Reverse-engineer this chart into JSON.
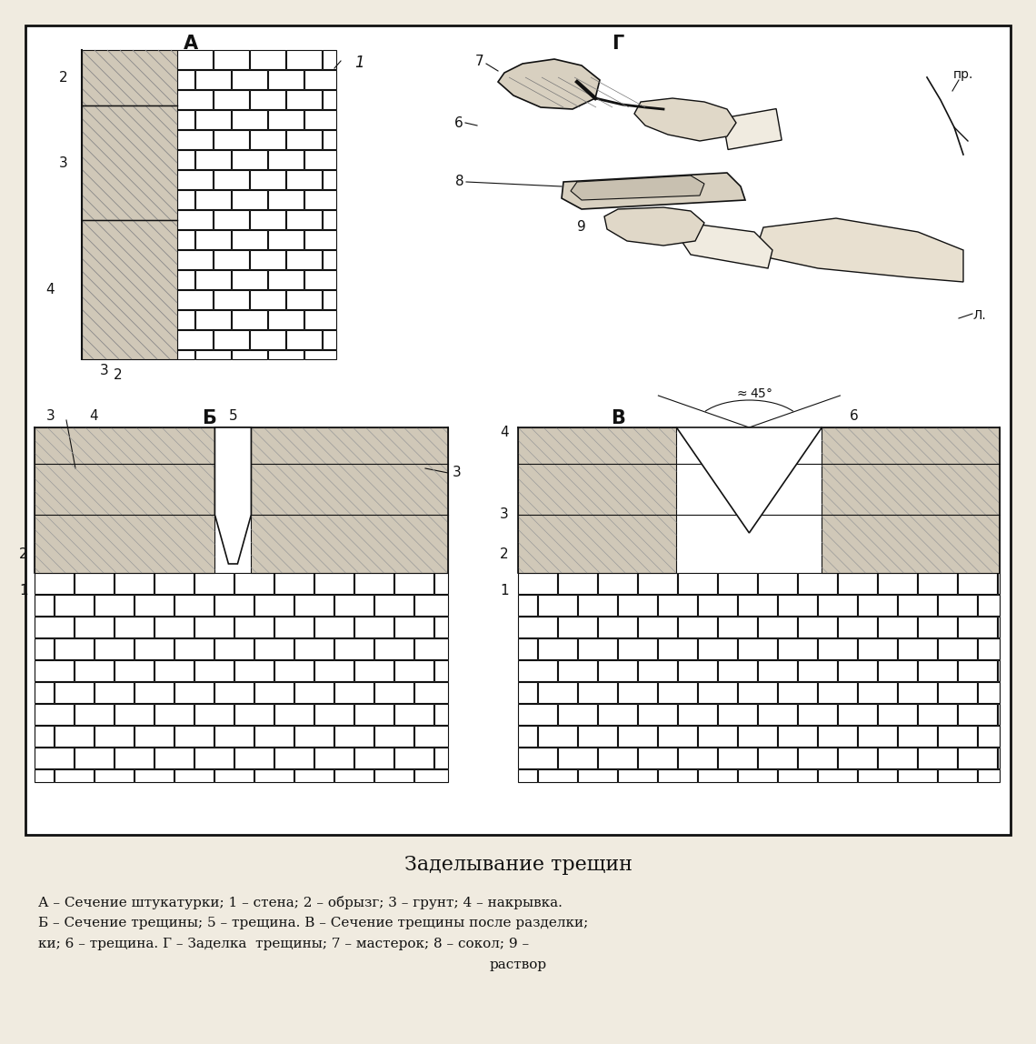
{
  "title": "Заделывание трещин",
  "caption_line1": "А – Сечение штукатурки; 1 – стена; 2 – обрызг; 3 – грунт; 4 – накрывка.",
  "caption_line2": "Б – Сечение трещины; 5 – трещина. В – Сечение трещины после разделки;",
  "caption_line3": "ки; 6 – трещина. Г – Заделка  трещины; 7 – мастерок; 8 – сокол; 9 –",
  "caption_line4": "раствор",
  "bg_color": "#f0ebe0",
  "line_color": "#111111",
  "plaster_color": "#d0c8b8",
  "brick_color": "#ffffff"
}
